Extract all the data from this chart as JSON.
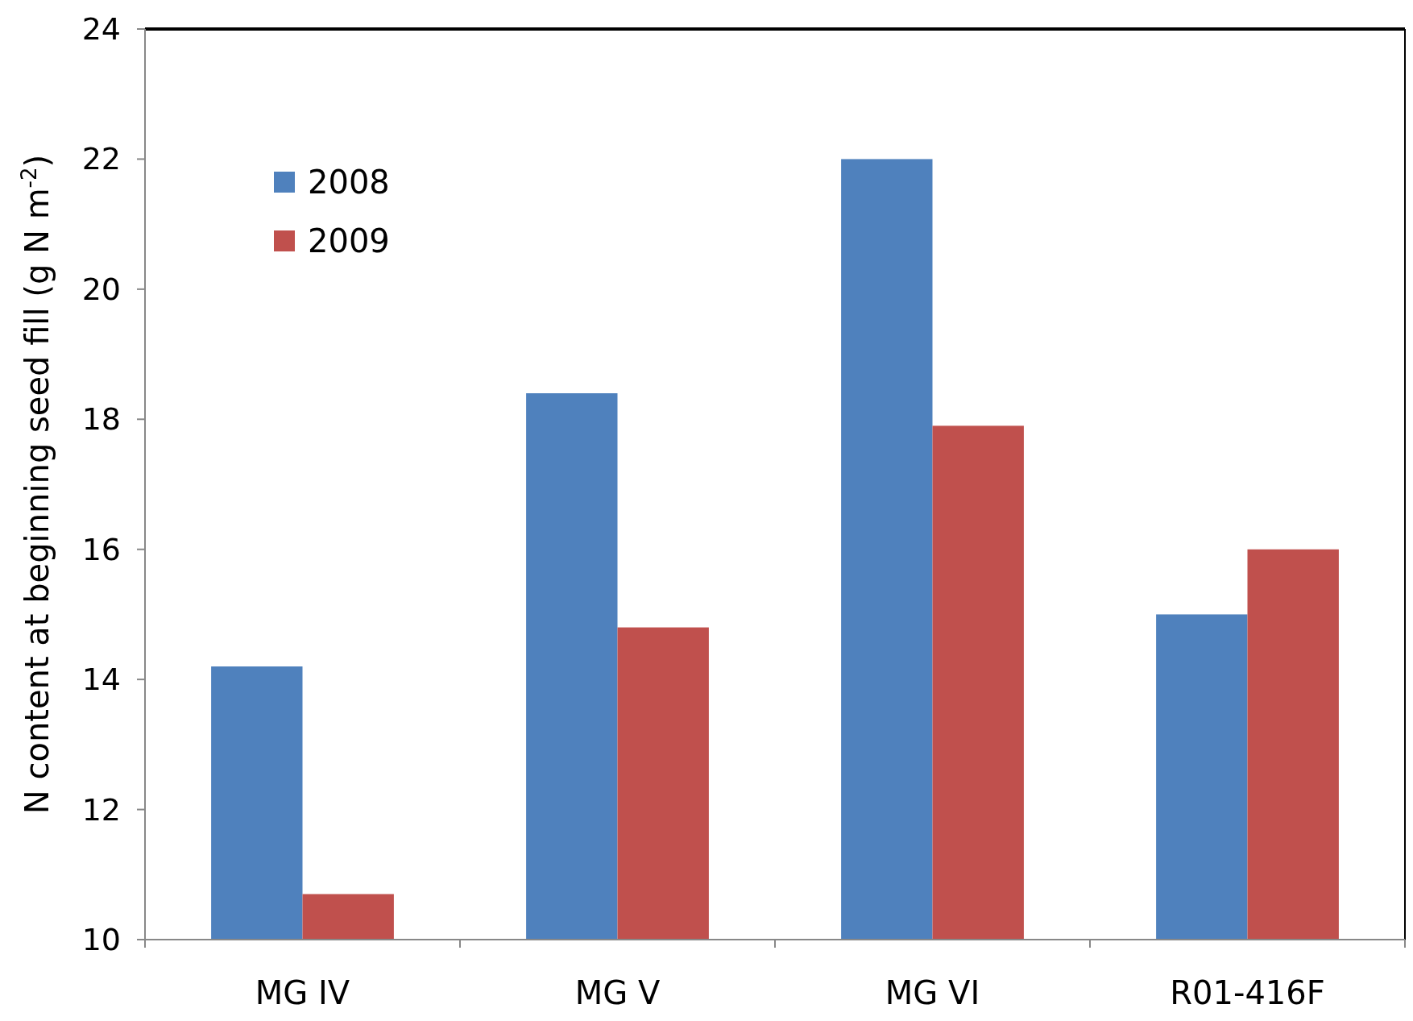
{
  "chart_data": {
    "type": "bar",
    "ylabel": "N content at beginning seed fill (g N m$^{-2}$)",
    "categories": [
      "MG IV",
      "MG V",
      "MG VI",
      "R01-416F"
    ],
    "series": [
      {
        "name": "2008",
        "color": "#4f81bd",
        "values": [
          14.2,
          18.4,
          22.0,
          15.0
        ]
      },
      {
        "name": "2009",
        "color": "#c0504d",
        "values": [
          10.7,
          14.8,
          17.9,
          16.0
        ]
      }
    ],
    "ylim": [
      10,
      24
    ],
    "yticks": [
      10,
      12,
      14,
      16,
      18,
      20,
      22,
      24
    ],
    "grid": false,
    "legend": "top left"
  }
}
